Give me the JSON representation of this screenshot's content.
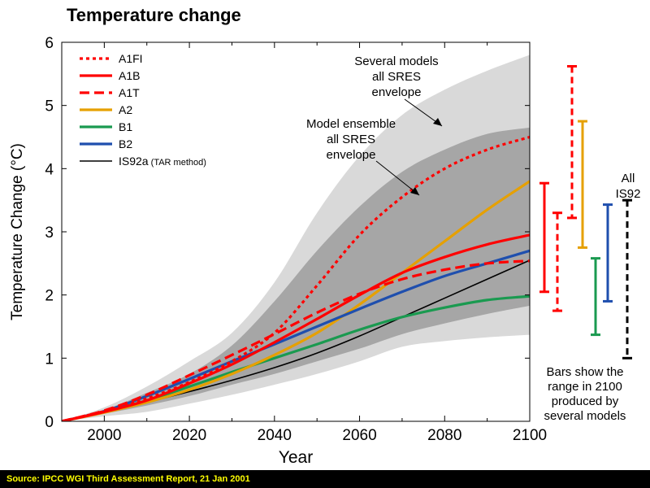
{
  "title": "Temperature change",
  "source": "Source: IPCC WGI Third Assessment Report, 21 Jan 2001",
  "annotations": {
    "several_models": [
      "Several models",
      "all SRES",
      "envelope"
    ],
    "model_ensemble": [
      "Model ensemble",
      "all SRES",
      "envelope"
    ],
    "all_is92": [
      "All",
      "IS92"
    ],
    "bars_note": [
      "Bars show the",
      "range in 2100",
      "produced by",
      "several models"
    ]
  },
  "chart_data": {
    "type": "line",
    "xlabel": "Year",
    "ylabel": "Temperature Change (°C)",
    "xlim": [
      1990,
      2100
    ],
    "ylim": [
      0,
      6
    ],
    "xticks": [
      2000,
      2020,
      2040,
      2060,
      2080,
      2100
    ],
    "yticks": [
      0,
      1,
      2,
      3,
      4,
      5,
      6
    ],
    "legend_position": "top-left",
    "envelopes": [
      {
        "name": "Several models all SRES envelope",
        "color": "#d9d9d9",
        "x": [
          1990,
          2000,
          2010,
          2020,
          2030,
          2040,
          2050,
          2060,
          2070,
          2080,
          2090,
          2100
        ],
        "upper": [
          0,
          0.22,
          0.55,
          0.95,
          1.4,
          2.2,
          3.3,
          4.2,
          4.85,
          5.25,
          5.55,
          5.8
        ],
        "lower": [
          0,
          0.08,
          0.15,
          0.28,
          0.42,
          0.58,
          0.75,
          0.95,
          1.18,
          1.27,
          1.33,
          1.37
        ]
      },
      {
        "name": "Model ensemble all SRES envelope",
        "color": "#a6a6a6",
        "x": [
          1990,
          2000,
          2010,
          2020,
          2030,
          2040,
          2050,
          2060,
          2070,
          2080,
          2090,
          2100
        ],
        "upper": [
          0,
          0.18,
          0.45,
          0.75,
          1.2,
          1.9,
          2.7,
          3.4,
          3.95,
          4.3,
          4.55,
          4.65
        ],
        "lower": [
          0,
          0.12,
          0.25,
          0.4,
          0.58,
          0.75,
          0.95,
          1.15,
          1.38,
          1.55,
          1.7,
          1.83
        ]
      }
    ],
    "series": [
      {
        "name": "A1FI",
        "color": "#ff0000",
        "dash": "dotted",
        "x": [
          1990,
          2000,
          2010,
          2020,
          2030,
          2040,
          2050,
          2060,
          2070,
          2080,
          2090,
          2100
        ],
        "values": [
          0,
          0.16,
          0.36,
          0.62,
          0.95,
          1.4,
          2.15,
          2.95,
          3.55,
          4.0,
          4.3,
          4.5
        ]
      },
      {
        "name": "A1B",
        "color": "#ff0000",
        "dash": "solid",
        "x": [
          1990,
          2000,
          2010,
          2020,
          2030,
          2040,
          2050,
          2060,
          2070,
          2080,
          2090,
          2100
        ],
        "values": [
          0,
          0.15,
          0.33,
          0.6,
          0.9,
          1.25,
          1.62,
          2.0,
          2.35,
          2.6,
          2.8,
          2.95
        ]
      },
      {
        "name": "A1T",
        "color": "#ff0000",
        "dash": "dashed",
        "x": [
          1990,
          2000,
          2010,
          2020,
          2030,
          2040,
          2050,
          2060,
          2070,
          2080,
          2090,
          2100
        ],
        "values": [
          0,
          0.17,
          0.42,
          0.73,
          1.05,
          1.38,
          1.72,
          2.02,
          2.25,
          2.4,
          2.5,
          2.54
        ]
      },
      {
        "name": "A2",
        "color": "#e6a000",
        "dash": "solid",
        "x": [
          1990,
          2000,
          2010,
          2020,
          2030,
          2040,
          2050,
          2060,
          2070,
          2080,
          2090,
          2100
        ],
        "values": [
          0,
          0.14,
          0.3,
          0.5,
          0.75,
          1.05,
          1.4,
          1.85,
          2.35,
          2.85,
          3.35,
          3.8
        ]
      },
      {
        "name": "B1",
        "color": "#1a9a50",
        "dash": "solid",
        "x": [
          1990,
          2000,
          2010,
          2020,
          2030,
          2040,
          2050,
          2060,
          2070,
          2080,
          2090,
          2100
        ],
        "values": [
          0,
          0.15,
          0.33,
          0.55,
          0.78,
          1.0,
          1.22,
          1.45,
          1.65,
          1.8,
          1.92,
          1.98
        ]
      },
      {
        "name": "B2",
        "color": "#1f4fae",
        "dash": "solid",
        "x": [
          1990,
          2000,
          2010,
          2020,
          2030,
          2040,
          2050,
          2060,
          2070,
          2080,
          2090,
          2100
        ],
        "values": [
          0,
          0.16,
          0.4,
          0.67,
          0.95,
          1.22,
          1.5,
          1.78,
          2.05,
          2.3,
          2.5,
          2.7
        ]
      },
      {
        "name": "IS92a",
        "name_note": "(TAR method)",
        "color": "#000000",
        "dash": "solid",
        "x": [
          1990,
          2000,
          2010,
          2020,
          2030,
          2040,
          2050,
          2060,
          2070,
          2080,
          2090,
          2100
        ],
        "values": [
          0,
          0.14,
          0.3,
          0.47,
          0.65,
          0.85,
          1.08,
          1.35,
          1.65,
          1.95,
          2.25,
          2.55
        ]
      }
    ],
    "range_bars_2100": [
      {
        "name": "A1B",
        "color": "#ff0000",
        "dash": "solid",
        "low": 2.05,
        "high": 3.77
      },
      {
        "name": "A1T",
        "color": "#ff0000",
        "dash": "dashed",
        "low": 1.75,
        "high": 3.3
      },
      {
        "name": "A1FI",
        "color": "#ff0000",
        "dash": "dashed",
        "low": 3.22,
        "high": 5.62
      },
      {
        "name": "A2",
        "color": "#e6a000",
        "dash": "solid",
        "low": 2.75,
        "high": 4.75
      },
      {
        "name": "B1",
        "color": "#1a9a50",
        "dash": "solid",
        "low": 1.37,
        "high": 2.58
      },
      {
        "name": "B2",
        "color": "#1f4fae",
        "dash": "solid",
        "low": 1.9,
        "high": 3.43
      },
      {
        "name": "IS92",
        "color": "#000000",
        "dash": "dashed",
        "low": 1.0,
        "high": 3.5
      }
    ]
  }
}
